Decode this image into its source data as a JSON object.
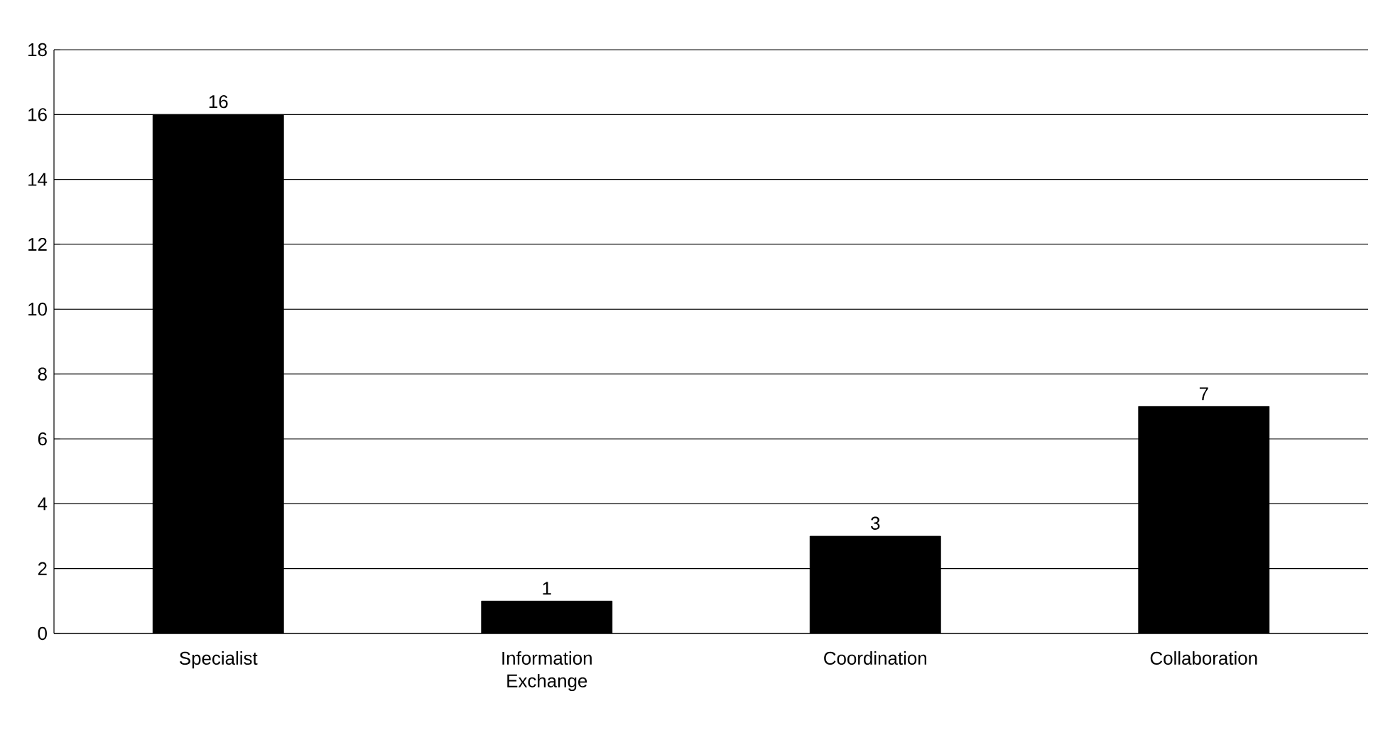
{
  "chart_data": {
    "type": "bar",
    "categories": [
      "Specialist",
      "Information Exchange",
      "Coordination",
      "Collaboration"
    ],
    "values": [
      16,
      1,
      3,
      7
    ],
    "color": "#000000",
    "ylim": [
      0,
      18
    ],
    "yticks": [
      0,
      2,
      4,
      6,
      8,
      10,
      12,
      14,
      16,
      18
    ],
    "grid": "y",
    "data_labels": true
  }
}
